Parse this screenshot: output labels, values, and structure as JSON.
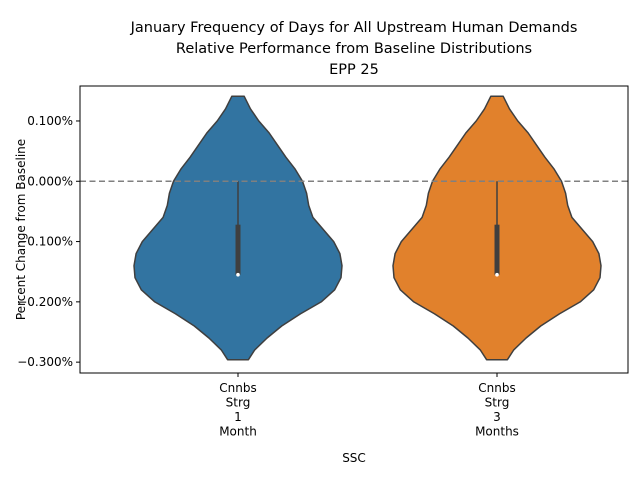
{
  "chart_data": {
    "type": "violin",
    "title_lines": [
      "January Frequency of Days for All Upstream Human Demands",
      "Relative Performance from Baseline Distributions",
      "EPP 25"
    ],
    "xlabel": "SSC",
    "ylabel": "Percent Change from Baseline",
    "ylim": [
      -0.318,
      0.158
    ],
    "yticks": [
      0.1,
      0.0,
      -0.1,
      -0.2,
      -0.3
    ],
    "ytick_labels": [
      "0.100%",
      "0.000%",
      "−0.100%",
      "−0.200%",
      "−0.300%"
    ],
    "reference_line": {
      "y": 0.0,
      "style": "dashed",
      "color": "#808080"
    },
    "categories": [
      {
        "lines": [
          "Cnnbs",
          "Strg",
          "1",
          "Month"
        ]
      },
      {
        "lines": [
          "Cnnbs",
          "Strg",
          "3",
          "Months"
        ]
      }
    ],
    "series": [
      {
        "color": "#3274a1",
        "min": -0.296,
        "max": 0.141,
        "q1": -0.155,
        "median": -0.155,
        "q3": -0.072,
        "whisker_low": -0.155,
        "whisker_high": 0.0,
        "density_profile": [
          [
            0.141,
            0.06
          ],
          [
            0.12,
            0.12
          ],
          [
            0.1,
            0.2
          ],
          [
            0.08,
            0.3
          ],
          [
            0.06,
            0.38
          ],
          [
            0.04,
            0.46
          ],
          [
            0.02,
            0.55
          ],
          [
            0.0,
            0.62
          ],
          [
            -0.02,
            0.66
          ],
          [
            -0.04,
            0.68
          ],
          [
            -0.06,
            0.72
          ],
          [
            -0.08,
            0.82
          ],
          [
            -0.1,
            0.92
          ],
          [
            -0.12,
            0.98
          ],
          [
            -0.14,
            1.0
          ],
          [
            -0.16,
            0.99
          ],
          [
            -0.18,
            0.93
          ],
          [
            -0.2,
            0.8
          ],
          [
            -0.22,
            0.6
          ],
          [
            -0.24,
            0.42
          ],
          [
            -0.26,
            0.28
          ],
          [
            -0.28,
            0.16
          ],
          [
            -0.296,
            0.1
          ]
        ]
      },
      {
        "color": "#e1812c",
        "min": -0.296,
        "max": 0.141,
        "q1": -0.155,
        "median": -0.155,
        "q3": -0.072,
        "whisker_low": -0.155,
        "whisker_high": 0.0,
        "density_profile": [
          [
            0.141,
            0.06
          ],
          [
            0.12,
            0.12
          ],
          [
            0.1,
            0.2
          ],
          [
            0.08,
            0.3
          ],
          [
            0.06,
            0.38
          ],
          [
            0.04,
            0.46
          ],
          [
            0.02,
            0.55
          ],
          [
            0.0,
            0.62
          ],
          [
            -0.02,
            0.66
          ],
          [
            -0.04,
            0.68
          ],
          [
            -0.06,
            0.72
          ],
          [
            -0.08,
            0.82
          ],
          [
            -0.1,
            0.92
          ],
          [
            -0.12,
            0.98
          ],
          [
            -0.14,
            1.0
          ],
          [
            -0.16,
            0.99
          ],
          [
            -0.18,
            0.93
          ],
          [
            -0.2,
            0.8
          ],
          [
            -0.22,
            0.6
          ],
          [
            -0.24,
            0.42
          ],
          [
            -0.26,
            0.28
          ],
          [
            -0.28,
            0.16
          ],
          [
            -0.296,
            0.1
          ]
        ]
      }
    ]
  }
}
